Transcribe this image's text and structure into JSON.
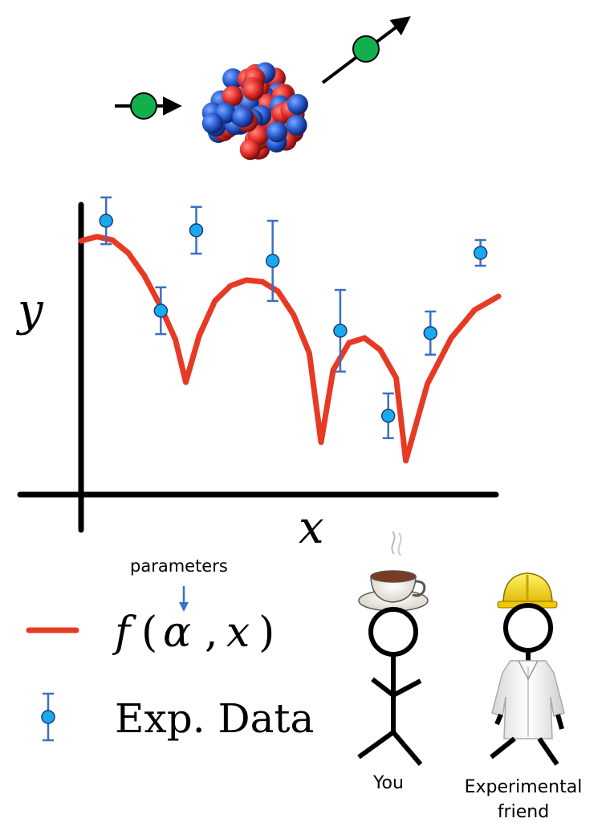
{
  "labels": {
    "y_axis": "y",
    "x_axis": "x",
    "parameters": "parameters",
    "func_f": "f",
    "func_open": "(",
    "func_alpha": "α",
    "func_comma": ",",
    "func_x": "x",
    "func_close": ")",
    "exp_data": "Exp. Data",
    "you": "You",
    "friend_line1": "Experimental",
    "friend_line2": "friend"
  },
  "colors": {
    "model_curve": "#e63a25",
    "data_point": "#19a9ee",
    "error_bar": "#3b6fc4",
    "projectile": "#11b04c",
    "proton": "#e8322e",
    "neutron": "#2a5fd3",
    "hard_hat": "#ffd700"
  },
  "icons": {
    "nucleus": "nucleus-icon",
    "coffee": "coffee-cup-icon",
    "hard_hat": "hard-hat-icon",
    "lab_coat": "lab-coat-icon"
  },
  "chart_data": {
    "type": "scatter",
    "xlabel": "x",
    "ylabel": "y",
    "grid": false,
    "legend_placement": "bottom-left",
    "exp_data": [
      {
        "x": 0.06,
        "y": 1.0,
        "err": 0.091
      },
      {
        "x": 0.191,
        "y": 0.65,
        "err": 0.091
      },
      {
        "x": 0.276,
        "y": 0.963,
        "err": 0.091
      },
      {
        "x": 0.459,
        "y": 0.844,
        "err": 0.156
      },
      {
        "x": 0.621,
        "y": 0.572,
        "err": 0.159
      },
      {
        "x": 0.736,
        "y": 0.241,
        "err": 0.087
      },
      {
        "x": 0.837,
        "y": 0.563,
        "err": 0.084
      },
      {
        "x": 0.957,
        "y": 0.875,
        "err": 0.05
      }
    ],
    "model_curve": [
      [
        0.0,
        0.922
      ],
      [
        0.038,
        0.938
      ],
      [
        0.075,
        0.925
      ],
      [
        0.113,
        0.875
      ],
      [
        0.151,
        0.788
      ],
      [
        0.189,
        0.672
      ],
      [
        0.226,
        0.538
      ],
      [
        0.251,
        0.372
      ],
      [
        0.283,
        0.553
      ],
      [
        0.321,
        0.688
      ],
      [
        0.358,
        0.747
      ],
      [
        0.396,
        0.769
      ],
      [
        0.434,
        0.763
      ],
      [
        0.472,
        0.725
      ],
      [
        0.509,
        0.634
      ],
      [
        0.547,
        0.484
      ],
      [
        0.575,
        0.138
      ],
      [
        0.604,
        0.419
      ],
      [
        0.642,
        0.525
      ],
      [
        0.679,
        0.544
      ],
      [
        0.717,
        0.497
      ],
      [
        0.755,
        0.388
      ],
      [
        0.778,
        0.066
      ],
      [
        0.83,
        0.366
      ],
      [
        0.887,
        0.544
      ],
      [
        0.943,
        0.653
      ],
      [
        1.0,
        0.706
      ]
    ]
  }
}
